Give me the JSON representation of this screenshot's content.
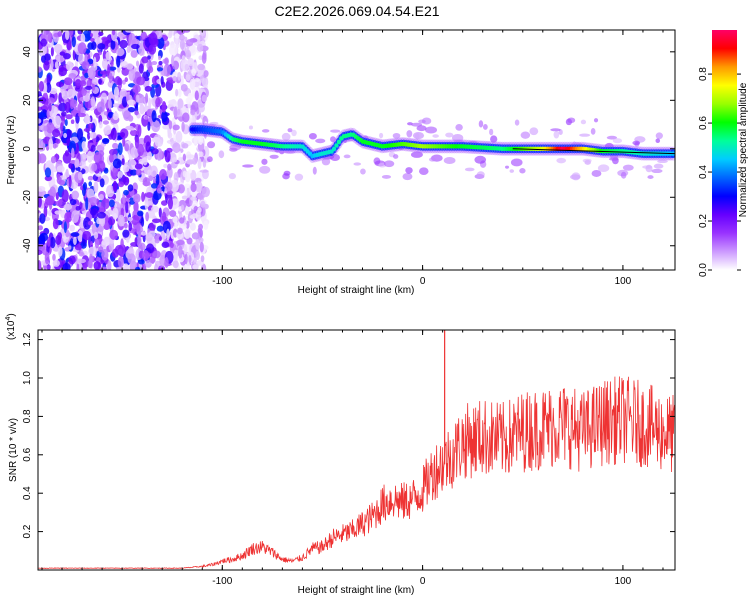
{
  "title": "C2E2.2026.069.04.54.E21",
  "chart_data": [
    {
      "type": "heatmap",
      "title": "C2E2.2026.069.04.54.E21",
      "xlabel": "Height of straight line (km)",
      "ylabel": "Frequency (Hz)",
      "xlim": [
        -192,
        126
      ],
      "ylim": [
        -50,
        49
      ],
      "xticks": [
        -100,
        0,
        100
      ],
      "yticks": [
        -40,
        -20,
        0,
        20,
        40
      ],
      "xtick_labels": [
        "-100",
        "0",
        "100"
      ],
      "ytick_labels": [
        "-40",
        "-20",
        "0",
        "20",
        "40"
      ],
      "colorbar": {
        "label": "Normalized spectral amplitude",
        "range": [
          0,
          0.98
        ],
        "ticks": [
          0.0,
          0.2,
          0.4,
          0.6,
          0.8
        ],
        "tick_labels": [
          "0.0",
          "0.2",
          "0.4",
          "0.6",
          "0.8"
        ],
        "colors": [
          "#ffffff",
          "#cc99ff",
          "#9933ff",
          "#6600ff",
          "#0000ff",
          "#0066ff",
          "#00ccff",
          "#00ff99",
          "#00ff00",
          "#99ff00",
          "#ffff00",
          "#ff9900",
          "#ff0000",
          "#ff0066"
        ]
      },
      "noise_region_x": [
        -192,
        -108
      ],
      "ridge": {
        "x": [
          -115,
          -110,
          -100,
          -95,
          -90,
          -80,
          -70,
          -60,
          -55,
          -50,
          -45,
          -40,
          -35,
          -30,
          -25,
          -20,
          -10,
          0,
          10,
          20,
          40,
          60,
          70,
          80,
          90,
          100,
          110,
          126
        ],
        "freq": [
          8,
          8,
          7,
          4,
          3,
          2,
          1,
          1,
          -3,
          -2,
          -1,
          5,
          6,
          3,
          2,
          1,
          2,
          1,
          1,
          1,
          0,
          0,
          0,
          0,
          -1,
          -1,
          -2,
          -2
        ],
        "amplitude": [
          0.3,
          0.35,
          0.4,
          0.55,
          0.6,
          0.6,
          0.55,
          0.5,
          0.45,
          0.5,
          0.5,
          0.55,
          0.55,
          0.6,
          0.6,
          0.6,
          0.65,
          0.7,
          0.65,
          0.6,
          0.55,
          0.75,
          0.98,
          0.8,
          0.6,
          0.55,
          0.5,
          0.45
        ]
      }
    },
    {
      "type": "line",
      "xlabel": "Height of straight line (km)",
      "ylabel": "SNR (10 * v/v)",
      "yscale_label": "(x10",
      "yscale_exp": "4",
      "xlim": [
        -192,
        126
      ],
      "ylim": [
        0,
        1.25
      ],
      "xticks": [
        -100,
        0,
        100
      ],
      "yticks": [
        0.2,
        0.4,
        0.6,
        0.8,
        1.0,
        1.2
      ],
      "xtick_labels": [
        "-100",
        "0",
        "100"
      ],
      "ytick_labels": [
        "0.2",
        "0.4",
        "0.6",
        "0.8",
        "1.0",
        "1.2"
      ],
      "series": [
        {
          "name": "SNR",
          "color": "#ee3333",
          "x": [
            -192,
            -180,
            -160,
            -140,
            -120,
            -110,
            -105,
            -100,
            -95,
            -90,
            -85,
            -80,
            -75,
            -70,
            -65,
            -60,
            -55,
            -50,
            -45,
            -40,
            -35,
            -30,
            -25,
            -20,
            -15,
            -10,
            -5,
            0,
            5,
            10,
            15,
            20,
            30,
            40,
            50,
            60,
            70,
            80,
            90,
            100,
            110,
            120,
            126
          ],
          "y": [
            0.01,
            0.01,
            0.01,
            0.01,
            0.01,
            0.02,
            0.03,
            0.05,
            0.06,
            0.08,
            0.12,
            0.13,
            0.1,
            0.06,
            0.05,
            0.07,
            0.12,
            0.13,
            0.18,
            0.2,
            0.22,
            0.26,
            0.3,
            0.37,
            0.4,
            0.38,
            0.4,
            0.45,
            0.55,
            0.6,
            0.65,
            0.72,
            0.75,
            0.73,
            0.78,
            0.8,
            0.82,
            0.78,
            0.83,
            0.85,
            0.82,
            0.78,
            0.76
          ]
        }
      ]
    }
  ]
}
